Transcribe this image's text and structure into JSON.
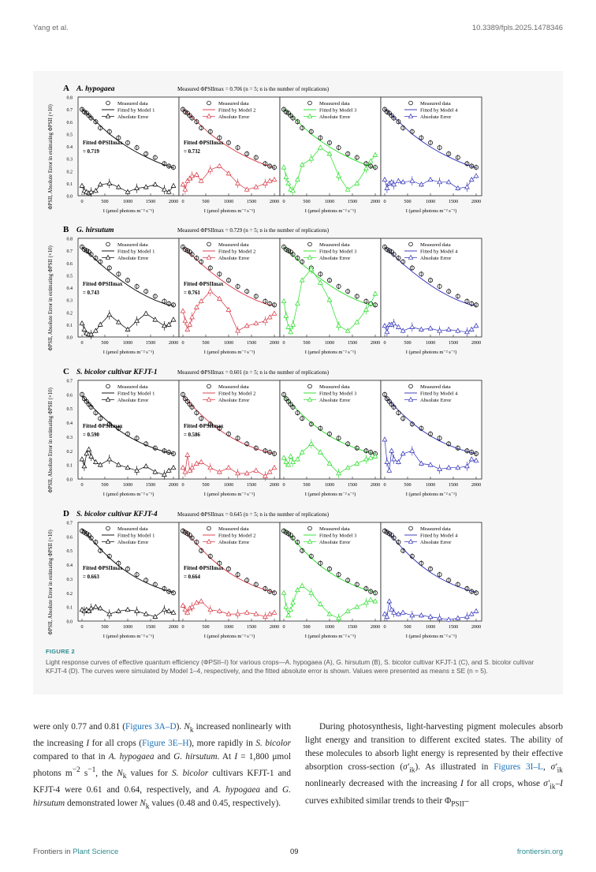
{
  "header": {
    "left": "Yang et al.",
    "right": "10.3389/fpls.2025.1478346"
  },
  "figure": {
    "caption_title": "FIGURE 2",
    "caption_text": "Light response curves of effective quantum efficiency (ΦPSII–I) for various crops—A. hypogaea (A), G. hirsutum (B), S. bicolor cultivar KFJT-1 (C), and S. bicolor cultivar KFJT-4 (D). The curves were simulated by Model 1–4, respectively, and the fitted absolute error is shown. Values were presented as means ± SE (n = 5).",
    "y_axis_label": "ΦPSII, Absolute Error in estimating ΦPSII (×10)",
    "x_axis_label": "I (μmol photons m⁻² s⁻¹)",
    "legend_measured": "Measured data",
    "legend_error": "Absolute Error",
    "model_labels": [
      "Fitted by Model 1",
      "Fitted by Model 2",
      "Fitted by Model 3",
      "Fitted by Model 4"
    ],
    "fitted_title": "Fitted ΦPSIImax",
    "x_ticks": [
      "0",
      "500",
      "1000",
      "1500",
      "2000"
    ],
    "colors": {
      "model1": "#000000",
      "model2": "#d6333f",
      "model3": "#22dd22",
      "model4": "#2b2bb8"
    }
  },
  "chart_data": [
    {
      "type": "line",
      "panel": "A",
      "crop": "A. hypogaea",
      "measured_note": "Measured ΦPSIImax = 0.706 (n = 5; n is the number of replications)",
      "fitted_labels": [
        "= 0.719",
        "= 0.732"
      ],
      "x": [
        0,
        50,
        100,
        150,
        200,
        300,
        400,
        600,
        800,
        1000,
        1200,
        1400,
        1600,
        1800,
        1900,
        2000
      ],
      "measured": [
        0.7,
        0.68,
        0.67,
        0.65,
        0.63,
        0.6,
        0.55,
        0.52,
        0.47,
        0.43,
        0.39,
        0.34,
        0.31,
        0.26,
        0.24,
        0.23
      ],
      "fitted": [
        0.705,
        0.688,
        0.672,
        0.655,
        0.637,
        0.603,
        0.568,
        0.5,
        0.445,
        0.395,
        0.352,
        0.315,
        0.28,
        0.25,
        0.24,
        0.225
      ],
      "errors": [
        [
          0.08,
          0.04,
          0.03,
          0.02,
          0.03,
          0.04,
          0.09,
          0.1,
          0.07,
          0.03,
          0.06,
          0.07,
          0.09,
          0.05,
          0.03,
          0.08
        ],
        [
          0.09,
          0.05,
          0.12,
          0.14,
          0.16,
          0.17,
          0.12,
          0.21,
          0.24,
          0.18,
          0.1,
          0.05,
          0.07,
          0.1,
          0.12,
          0.13
        ],
        [
          0.23,
          0.15,
          0.1,
          0.05,
          0.04,
          0.13,
          0.25,
          0.3,
          0.39,
          0.34,
          0.16,
          0.05,
          0.1,
          0.22,
          0.28,
          0.33
        ],
        [
          0.13,
          0.06,
          0.1,
          0.11,
          0.09,
          0.12,
          0.11,
          0.12,
          0.09,
          0.13,
          0.11,
          0.11,
          0.06,
          0.07,
          0.13,
          0.16
        ]
      ]
    },
    {
      "type": "line",
      "panel": "B",
      "crop": "G. hirsutum",
      "measured_note": "Measured ΦPSIImax = 0.729 (n = 5; n is the number of replications)",
      "fitted_labels": [
        "= 0.743",
        "= 0.761"
      ],
      "x": [
        0,
        50,
        100,
        150,
        200,
        300,
        400,
        600,
        800,
        1000,
        1200,
        1400,
        1600,
        1800,
        1900,
        2000
      ],
      "measured": [
        0.73,
        0.71,
        0.7,
        0.69,
        0.67,
        0.64,
        0.61,
        0.56,
        0.51,
        0.46,
        0.41,
        0.37,
        0.33,
        0.29,
        0.27,
        0.26
      ],
      "fitted": [
        0.73,
        0.712,
        0.695,
        0.678,
        0.661,
        0.627,
        0.592,
        0.53,
        0.473,
        0.42,
        0.373,
        0.333,
        0.298,
        0.27,
        0.26,
        0.255
      ],
      "errors": [
        [
          0.11,
          0.06,
          0.03,
          0.02,
          0.02,
          0.05,
          0.1,
          0.18,
          0.12,
          0.06,
          0.13,
          0.19,
          0.14,
          0.09,
          0.1,
          0.14
        ],
        [
          0.21,
          0.13,
          0.06,
          0.1,
          0.16,
          0.24,
          0.29,
          0.37,
          0.31,
          0.22,
          0.05,
          0.09,
          0.11,
          0.13,
          0.16,
          0.19
        ],
        [
          0.29,
          0.17,
          0.08,
          0.04,
          0.1,
          0.27,
          0.46,
          0.55,
          0.44,
          0.3,
          0.09,
          0.05,
          0.12,
          0.22,
          0.27,
          0.35
        ],
        [
          0.09,
          0.04,
          0.1,
          0.1,
          0.11,
          0.08,
          0.05,
          0.08,
          0.06,
          0.07,
          0.05,
          0.06,
          0.05,
          0.04,
          0.06,
          0.09
        ]
      ]
    },
    {
      "type": "line",
      "panel": "C",
      "crop": "S. bicolor cultivar KFJT-1",
      "measured_note": "Measured ΦPSIImax = 0.601 (n = 5; n is the number of replications)",
      "fitted_labels": [
        "= 0.590",
        "= 0.586"
      ],
      "x": [
        0,
        50,
        100,
        150,
        200,
        300,
        400,
        600,
        800,
        1000,
        1200,
        1400,
        1600,
        1800,
        1900,
        2000
      ],
      "measured": [
        0.6,
        0.57,
        0.55,
        0.53,
        0.51,
        0.47,
        0.43,
        0.39,
        0.36,
        0.32,
        0.29,
        0.25,
        0.22,
        0.2,
        0.19,
        0.18
      ],
      "fitted": [
        0.59,
        0.572,
        0.555,
        0.538,
        0.521,
        0.488,
        0.456,
        0.398,
        0.348,
        0.305,
        0.27,
        0.24,
        0.215,
        0.195,
        0.187,
        0.18
      ],
      "errors": [
        [
          0.14,
          0.09,
          0.18,
          0.21,
          0.16,
          0.12,
          0.1,
          0.14,
          0.1,
          0.08,
          0.06,
          0.09,
          0.05,
          0.03,
          0.06,
          0.08
        ],
        [
          0.08,
          0.05,
          0.17,
          0.06,
          0.08,
          0.11,
          0.12,
          0.08,
          0.05,
          0.08,
          0.04,
          0.04,
          0.06,
          0.02,
          0.05,
          0.08
        ],
        [
          0.15,
          0.12,
          0.1,
          0.16,
          0.12,
          0.14,
          0.19,
          0.25,
          0.19,
          0.11,
          0.04,
          0.08,
          0.11,
          0.14,
          0.15,
          0.16
        ],
        [
          0.28,
          0.12,
          0.06,
          0.2,
          0.14,
          0.12,
          0.18,
          0.2,
          0.11,
          0.1,
          0.07,
          0.08,
          0.08,
          0.09,
          0.14,
          0.13
        ]
      ]
    },
    {
      "type": "line",
      "panel": "D",
      "crop": "S. bicolor cultivar KFJT-4",
      "measured_note": "Measured ΦPSIImax = 0.645 (n = 5; n is the number of replications)",
      "fitted_labels": [
        "= 0.663",
        "= 0.664"
      ],
      "x": [
        0,
        50,
        100,
        150,
        200,
        300,
        400,
        600,
        800,
        1000,
        1200,
        1400,
        1600,
        1800,
        1900,
        2000
      ],
      "measured": [
        0.64,
        0.63,
        0.62,
        0.61,
        0.59,
        0.56,
        0.5,
        0.46,
        0.41,
        0.37,
        0.33,
        0.29,
        0.26,
        0.23,
        0.21,
        0.2
      ],
      "fitted": [
        0.655,
        0.637,
        0.619,
        0.601,
        0.583,
        0.547,
        0.512,
        0.448,
        0.392,
        0.345,
        0.305,
        0.272,
        0.245,
        0.222,
        0.212,
        0.203
      ],
      "errors": [
        [
          0.08,
          0.07,
          0.08,
          0.07,
          0.09,
          0.1,
          0.09,
          0.05,
          0.07,
          0.08,
          0.07,
          0.05,
          0.03,
          0.08,
          0.07,
          0.06
        ],
        [
          0.11,
          0.08,
          0.06,
          0.09,
          0.1,
          0.13,
          0.14,
          0.08,
          0.07,
          0.05,
          0.05,
          0.06,
          0.05,
          0.03,
          0.05,
          0.06
        ],
        [
          0.2,
          0.1,
          0.04,
          0.08,
          0.13,
          0.22,
          0.25,
          0.2,
          0.12,
          0.05,
          0.02,
          0.07,
          0.1,
          0.13,
          0.15,
          0.14
        ],
        [
          0.05,
          0.03,
          0.14,
          0.08,
          0.06,
          0.05,
          0.06,
          0.04,
          0.04,
          0.03,
          0.02,
          0.01,
          0.02,
          0.03,
          0.05,
          0.07
        ]
      ]
    }
  ],
  "body_left": {
    "seg1": "were only 0.77 and 0.81 (",
    "link1": "Figures 3A–D",
    "seg2": "). ",
    "nk1": "N",
    "nk1sub": "k",
    "seg3": " increased nonlinearly with the increasing ",
    "i1": "I",
    "seg4": " for all crops (",
    "link2": "Figure 3E–H",
    "seg5": "), more rapidly in ",
    "sb1": "S. bicolor",
    "seg6": " compared to that in ",
    "ah1": "A. hypogaea",
    "seg7": " and ",
    "gh1": "G. hirsutum",
    "seg8": ". At ",
    "i2": "I",
    "seg9": " = 1,800 μmol photons m",
    "sup1": "−2",
    "seg10": " s",
    "sup2": "−1",
    "seg11": ", the ",
    "nk2": "N",
    "nk2sub": "k",
    "seg12": " values for ",
    "sb2": "S. bicolor",
    "seg13": " cultivars KFJT-1 and KFJT-4 were 0.61 and 0.64, respectively, and ",
    "ah2": "A. hypogaea",
    "seg14": " and ",
    "gh2": "G. hirsutum",
    "seg15": " demonstrated lower ",
    "nk3": "N",
    "nk3sub": "k",
    "seg16": " values (0.48 and 0.45, respectively)."
  },
  "body_right": {
    "seg1": "During photosynthesis, light-harvesting pigment molecules absorb light energy and transition to different excited states. The ability of these molecules to absorb light energy is represented by their effective absorption cross-section (",
    "sig1": "σ′",
    "sig1sub": "ik",
    "seg2": "). As illustrated in ",
    "link1": "Figures 3I–L",
    "seg3": ", ",
    "sig2": "σ′",
    "sig2sub": "ik",
    "seg4": " nonlinearly decreased with the increasing ",
    "i1": "I",
    "seg5": " for all crops, whose ",
    "sig3": "σ′",
    "sig3sub": "ik",
    "seg6": "–",
    "i2": "I",
    "seg7": " curves exhibited similar trends to their Φ",
    "phisub": "PSII",
    "seg8": "–"
  },
  "footer": {
    "journal_prefix": "Frontiers in ",
    "journal": "Plant Science",
    "page": "09",
    "site": "frontiersin.org"
  }
}
